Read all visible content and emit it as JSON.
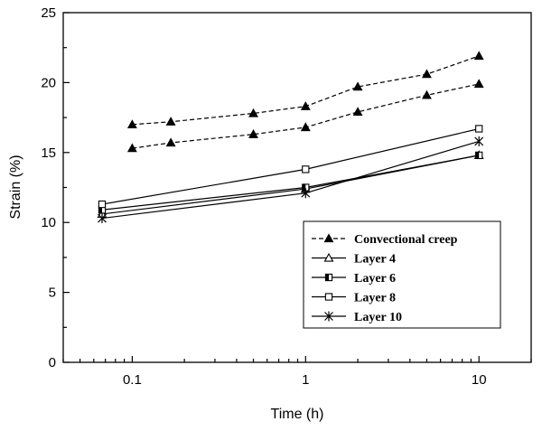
{
  "chart_data": {
    "type": "line",
    "title": "",
    "xlabel": "Time (h)",
    "ylabel": "Strain (%)",
    "xscale": "log",
    "xlim": [
      0.04,
      20
    ],
    "ylim": [
      0,
      25
    ],
    "xticks": [
      0.1,
      1,
      10
    ],
    "xtick_labels": [
      "0.1",
      "1",
      "10"
    ],
    "yticks": [
      0,
      5,
      10,
      15,
      20,
      25
    ],
    "ytick_labels": [
      "0",
      "5",
      "10",
      "15",
      "20",
      "25"
    ],
    "grid": false,
    "legend_position": "bottom-right",
    "series": [
      {
        "name": "Convectional creep",
        "group": "upper",
        "marker": "filled-triangle",
        "dash": "dashed",
        "in_legend": true,
        "x": [
          0.1,
          0.167,
          0.5,
          1,
          2,
          5,
          10
        ],
        "y": [
          17.0,
          17.2,
          17.8,
          18.3,
          19.7,
          20.6,
          21.9
        ]
      },
      {
        "name": "Convectional creep",
        "group": "lower",
        "marker": "filled-triangle",
        "dash": "dashed",
        "in_legend": false,
        "x": [
          0.1,
          0.167,
          0.5,
          1,
          2,
          5,
          10
        ],
        "y": [
          15.3,
          15.7,
          16.3,
          16.8,
          17.9,
          19.1,
          19.9
        ]
      },
      {
        "name": "Layer 4",
        "marker": "open-triangle",
        "dash": "solid",
        "in_legend": true,
        "x": [
          0.067,
          1,
          10
        ],
        "y": [
          10.6,
          12.4,
          14.8
        ]
      },
      {
        "name": "Layer 6",
        "marker": "half-square",
        "dash": "solid",
        "in_legend": true,
        "x": [
          0.067,
          1,
          10
        ],
        "y": [
          10.9,
          12.5,
          14.8
        ]
      },
      {
        "name": "Layer 8",
        "marker": "open-square",
        "dash": "solid",
        "in_legend": true,
        "x": [
          0.067,
          1,
          10
        ],
        "y": [
          11.3,
          13.8,
          16.7
        ]
      },
      {
        "name": "Layer 10",
        "marker": "star",
        "dash": "solid",
        "in_legend": true,
        "x": [
          0.067,
          1,
          10
        ],
        "y": [
          10.3,
          12.1,
          15.8
        ]
      }
    ]
  }
}
